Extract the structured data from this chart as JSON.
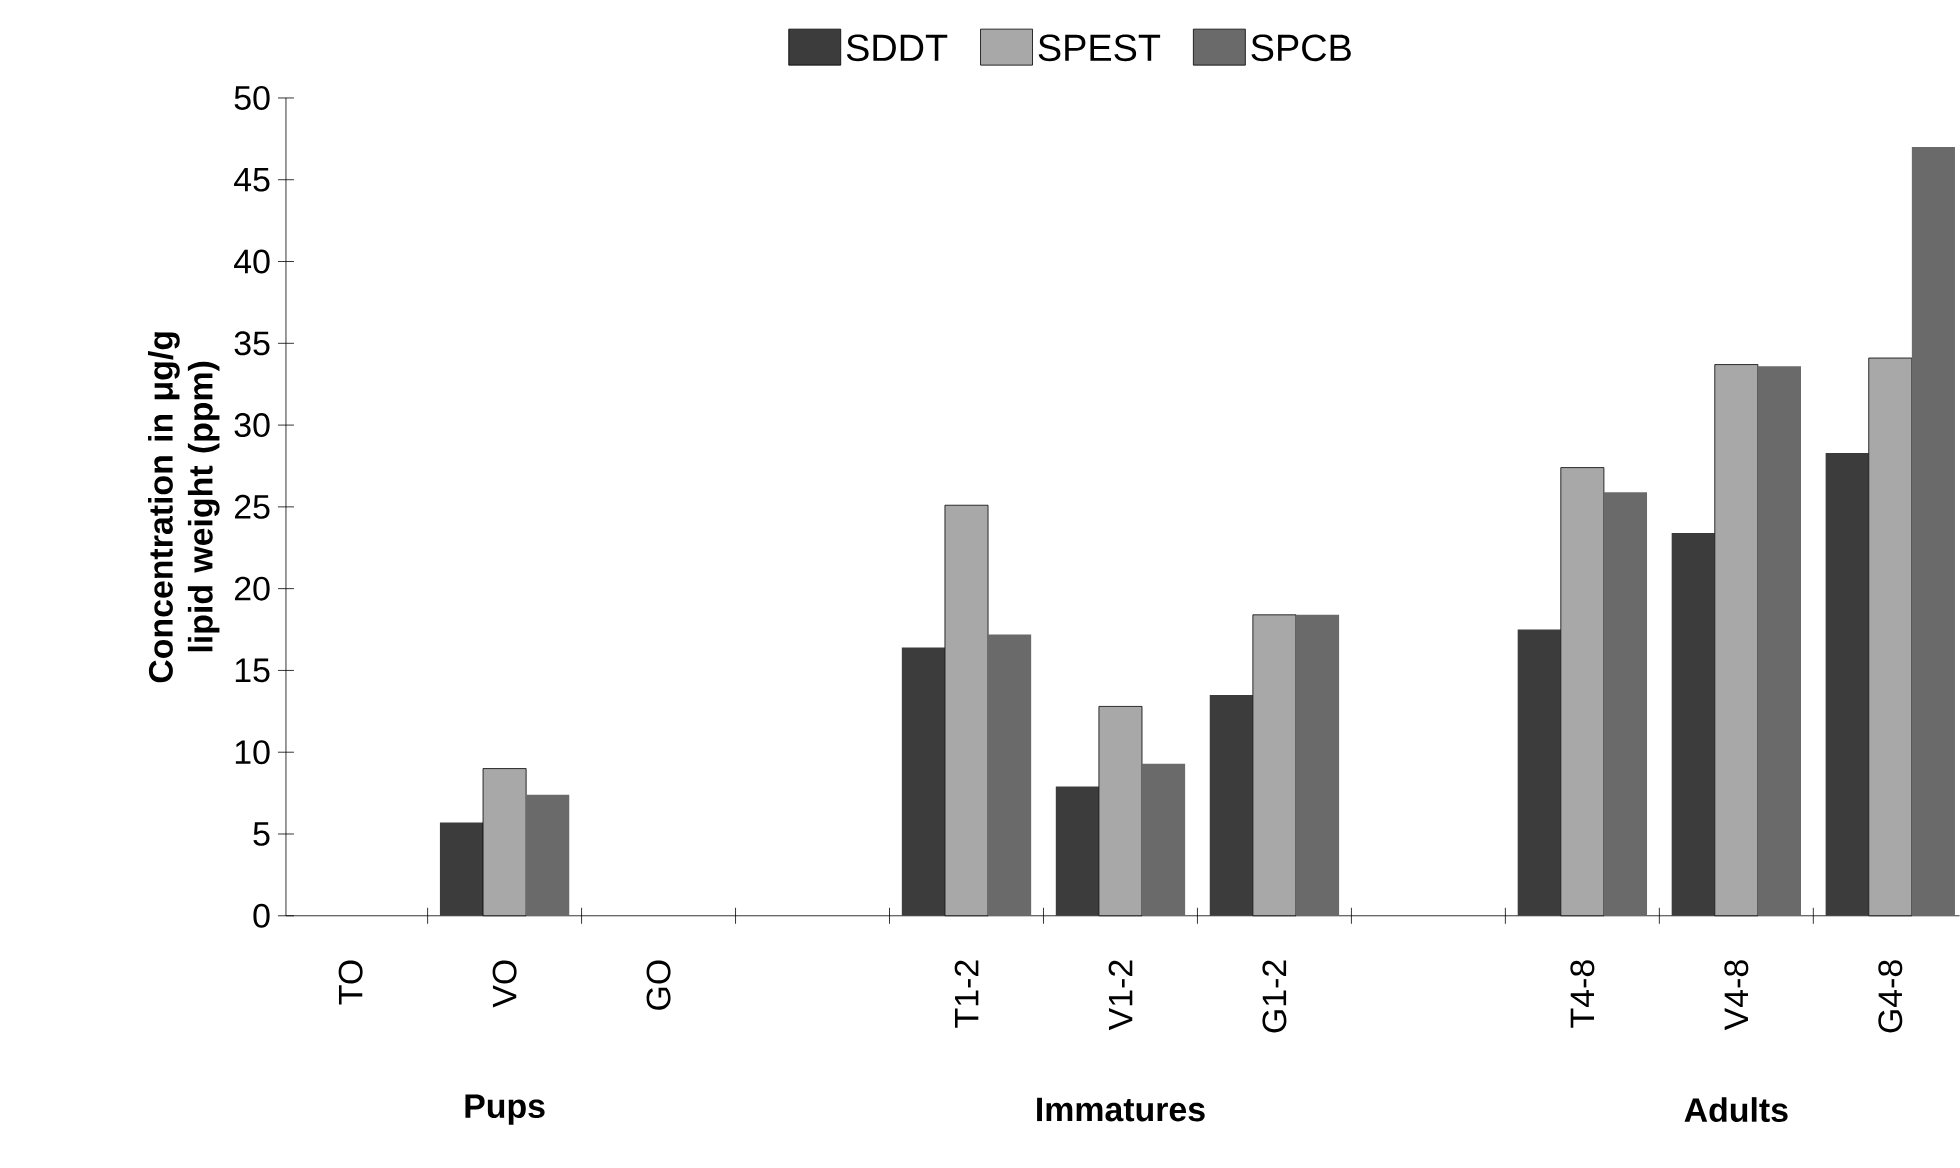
{
  "chart_data": {
    "type": "bar",
    "ylabel": "Concentration in μg/g lipid weight (ppm)",
    "categories": [
      "TO",
      "VO",
      "GO",
      null,
      "T1-2",
      "V1-2",
      "G1-2",
      null,
      "T4-8",
      "V4-8",
      "G4-8"
    ],
    "series": [
      {
        "name": "SDDT",
        "color": "#3c3c3c",
        "values": [
          null,
          5.7,
          null,
          null,
          16.4,
          7.9,
          13.5,
          null,
          17.5,
          23.4,
          28.3
        ]
      },
      {
        "name": "SPEST",
        "color": "#a8a8a8",
        "values": [
          null,
          9.0,
          null,
          null,
          25.1,
          12.8,
          18.4,
          null,
          27.4,
          33.7,
          34.1
        ]
      },
      {
        "name": "SPCB",
        "color": "#6a6a6a",
        "values": [
          null,
          7.4,
          null,
          null,
          17.2,
          9.3,
          18.4,
          null,
          25.9,
          33.6,
          47.0
        ]
      }
    ],
    "ylim": [
      0,
      50
    ],
    "yticks": [
      0,
      5,
      10,
      15,
      20,
      25,
      30,
      35,
      40,
      45,
      50
    ],
    "legend": "top",
    "grid": false,
    "annotations": [
      "Pups",
      "Immatures",
      "Adults"
    ]
  }
}
